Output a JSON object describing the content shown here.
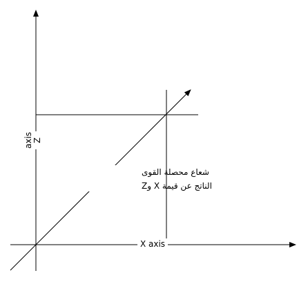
{
  "diagram": {
    "x_axis_label": "X axis",
    "z_axis_label_line1": "Z",
    "z_axis_label_line2": "axis",
    "resultant_label_line1": "شعاع محصلة القوى",
    "resultant_label_line2": "الناتج عن قيمة X وZ"
  },
  "colors": {
    "line": "#000000",
    "background": "#ffffff"
  }
}
